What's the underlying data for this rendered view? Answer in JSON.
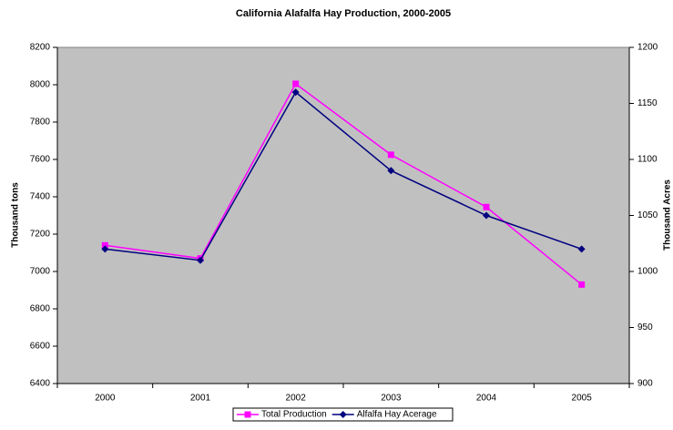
{
  "chart_data": {
    "type": "line",
    "title": "California Alafalfa Hay Production, 2000-2005",
    "y_label": "Thousand tons",
    "y2_label": "Thousand Acres",
    "categories": [
      "2000",
      "2001",
      "2002",
      "2003",
      "2004",
      "2005"
    ],
    "series": [
      {
        "name": "Total Production",
        "color": "#ff00ff",
        "marker": "square",
        "values": [
          7140,
          7070,
          8005,
          7625,
          7345,
          6930
        ]
      },
      {
        "name": "Alfalfa Hay Acerage",
        "color": "#000080",
        "marker": "diamond",
        "axis": "y2",
        "values": [
          1020,
          1010,
          1160,
          1090,
          1050,
          1020
        ]
      }
    ],
    "ylim": [
      6400,
      8200
    ],
    "yticks": [
      6400,
      6600,
      6800,
      7000,
      7200,
      7400,
      7600,
      7800,
      8000,
      8200
    ],
    "y2lim": [
      900,
      1200
    ],
    "y2ticks": [
      900,
      950,
      1000,
      1050,
      1100,
      1150,
      1200
    ],
    "plot_background": "#c0c0c0",
    "legend": "bottom"
  }
}
